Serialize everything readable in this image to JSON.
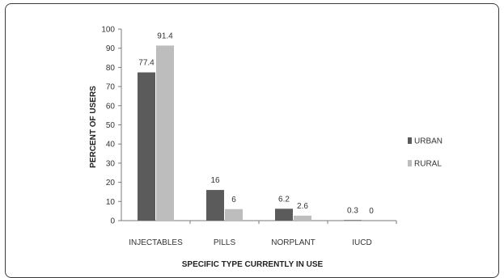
{
  "chart_data": {
    "type": "bar",
    "categories": [
      "INJECTABLES",
      "PILLS",
      "NORPLANT",
      "IUCD"
    ],
    "series": [
      {
        "name": "URBAN",
        "values": [
          77.4,
          16,
          6.2,
          0.3
        ],
        "labels": [
          "77.4",
          "16",
          "6.2",
          "0.3"
        ],
        "color": "#5b5b5b"
      },
      {
        "name": "RURAL",
        "values": [
          91.4,
          6,
          2.6,
          0
        ],
        "labels": [
          "91.4",
          "6",
          "2.6",
          "0"
        ],
        "color": "#bdbdbd"
      }
    ],
    "xlabel": "SPECIFIC TYPE CURRENTLY IN USE",
    "ylabel": "PERCENT OF USERS",
    "ylim": [
      0,
      100
    ],
    "yticks": [
      "0",
      "10",
      "20",
      "30",
      "40",
      "50",
      "60",
      "70",
      "80",
      "90",
      "100"
    ],
    "grid": false,
    "legend": "right"
  }
}
